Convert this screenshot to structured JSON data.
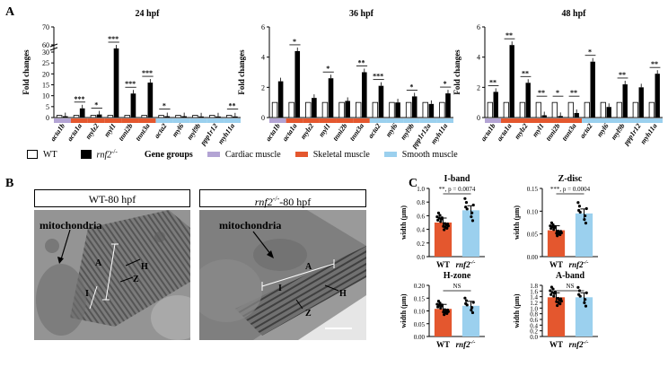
{
  "panel_labels": {
    "a": "A",
    "b": "B",
    "c": "C"
  },
  "panel_a": {
    "ylabel": "Fold changes",
    "legend": {
      "wt": "WT",
      "rnf2": "rnf2",
      "rnf2_sup": "-/-",
      "gene_groups": "Gene groups",
      "cardiac": "Cardiac muscle",
      "skeletal": "Skeletal muscle",
      "smooth": "Smooth muscle",
      "colors": {
        "cardiac": "#b3a4d4",
        "skeletal": "#e4572e",
        "smooth": "#9bd0ee",
        "wt": "#ffffff",
        "mut": "#000000"
      }
    }
  },
  "panel_b": {
    "left_title": "WT-80 hpf",
    "right_title_pre": "rnf2",
    "right_title_sup": "-/-",
    "right_title_post": "-80 hpf",
    "labels": {
      "mito": "mitochondria",
      "A": "A",
      "I": "I",
      "H": "H",
      "Z": "Z"
    }
  },
  "chart_data": [
    {
      "type": "bar",
      "title": "24 hpf",
      "ylabel": "Fold changes",
      "broken_axis": true,
      "yticks": [
        0,
        5,
        10,
        15,
        20,
        25,
        30,
        60,
        70
      ],
      "categories": [
        "acta1b",
        "acta1a",
        "mylz2",
        "myl1",
        "tnni2b",
        "tnnt3a",
        "acta2",
        "myl6",
        "myl9b",
        "ppp1r12",
        "myh11a"
      ],
      "groups": [
        "cardiac",
        "skeletal",
        "skeletal",
        "skeletal",
        "skeletal",
        "skeletal",
        "smooth",
        "smooth",
        "smooth",
        "smooth",
        "smooth"
      ],
      "series": [
        {
          "name": "WT",
          "values": [
            1,
            1,
            1,
            1,
            1,
            1,
            1,
            1,
            1,
            1,
            1
          ]
        },
        {
          "name": "rnf2-/-",
          "values": [
            0.6,
            4.2,
            1.4,
            58,
            11,
            16,
            0.6,
            0.6,
            0.5,
            0.5,
            0.5
          ]
        }
      ],
      "significance": [
        "",
        "***",
        "*",
        "***",
        "***",
        "***",
        "*",
        "",
        "",
        "",
        "**"
      ]
    },
    {
      "type": "bar",
      "title": "36 hpf",
      "ylabel": "Fold changes",
      "ylim": [
        0,
        6
      ],
      "yticks": [
        0,
        2,
        4,
        6
      ],
      "categories": [
        "acta1b",
        "acta1a",
        "mylz2",
        "myl1",
        "tnni2b",
        "tnnt3a",
        "acta2",
        "myl6",
        "myl9b",
        "ppp1r12a",
        "myh11a"
      ],
      "groups": [
        "cardiac",
        "skeletal",
        "skeletal",
        "skeletal",
        "skeletal",
        "skeletal",
        "smooth",
        "smooth",
        "smooth",
        "smooth",
        "smooth"
      ],
      "series": [
        {
          "name": "WT",
          "values": [
            1,
            1,
            1,
            1,
            1,
            1,
            1,
            1,
            1,
            1,
            1
          ]
        },
        {
          "name": "rnf2-/-",
          "values": [
            2.4,
            4.4,
            1.3,
            2.6,
            1.1,
            3.0,
            2.1,
            1.0,
            1.4,
            0.9,
            1.6
          ]
        }
      ],
      "significance": [
        "",
        "*",
        "",
        "*",
        "",
        "**",
        "***",
        "",
        "*",
        "",
        "*"
      ]
    },
    {
      "type": "bar",
      "title": "48 hpf",
      "ylabel": "Fold changes",
      "ylim": [
        0,
        6
      ],
      "yticks": [
        0,
        2,
        4,
        6
      ],
      "categories": [
        "acta1b",
        "acta1a",
        "mylz2",
        "myl1",
        "tnni2b",
        "tnnt3a",
        "acta2",
        "myl6",
        "myl9b",
        "ppp1r12",
        "myh11a"
      ],
      "groups": [
        "cardiac",
        "skeletal",
        "skeletal",
        "skeletal",
        "skeletal",
        "skeletal",
        "smooth",
        "smooth",
        "smooth",
        "smooth",
        "smooth"
      ],
      "series": [
        {
          "name": "WT",
          "values": [
            1,
            1,
            1,
            1,
            1,
            1,
            1,
            1,
            1,
            1,
            1
          ]
        },
        {
          "name": "rnf2-/-",
          "values": [
            1.7,
            4.8,
            2.3,
            0.15,
            0.1,
            0.3,
            3.7,
            0.7,
            2.2,
            2.0,
            2.9
          ]
        }
      ],
      "significance": [
        "**",
        "**",
        "**",
        "**",
        "*",
        "**",
        "*",
        "",
        "**",
        "",
        "**"
      ]
    },
    {
      "type": "bar",
      "title": "I-band",
      "ylabel": "width (μm)",
      "ylim": [
        0,
        1.0
      ],
      "yticks": [
        0.0,
        0.2,
        0.4,
        0.6,
        0.8,
        1.0
      ],
      "categories": [
        "WT",
        "rnf2-/-"
      ],
      "values": [
        0.5,
        0.68
      ],
      "annotation": "**, p = 0.0074"
    },
    {
      "type": "bar",
      "title": "Z-disc",
      "ylabel": "width (μm)",
      "ylim": [
        0,
        0.15
      ],
      "yticks": [
        0.0,
        0.05,
        0.1,
        0.15
      ],
      "categories": [
        "WT",
        "rnf2-/-"
      ],
      "values": [
        0.058,
        0.095
      ],
      "annotation": "***, p = 0.0004"
    },
    {
      "type": "bar",
      "title": "H-zone",
      "ylabel": "width (μm)",
      "ylim": [
        0,
        0.2
      ],
      "yticks": [
        0.0,
        0.05,
        0.1,
        0.15,
        0.2
      ],
      "categories": [
        "WT",
        "rnf2-/-"
      ],
      "values": [
        0.108,
        0.12
      ],
      "annotation": "NS"
    },
    {
      "type": "bar",
      "title": "A-band",
      "ylabel": "width (μm)",
      "ylim": [
        0,
        1.8
      ],
      "yticks": [
        0.0,
        0.2,
        0.4,
        0.6,
        0.8,
        1.0,
        1.2,
        1.4,
        1.6,
        1.8
      ],
      "categories": [
        "WT",
        "rnf2-/-"
      ],
      "values": [
        1.38,
        1.38
      ],
      "annotation": "NS"
    }
  ]
}
